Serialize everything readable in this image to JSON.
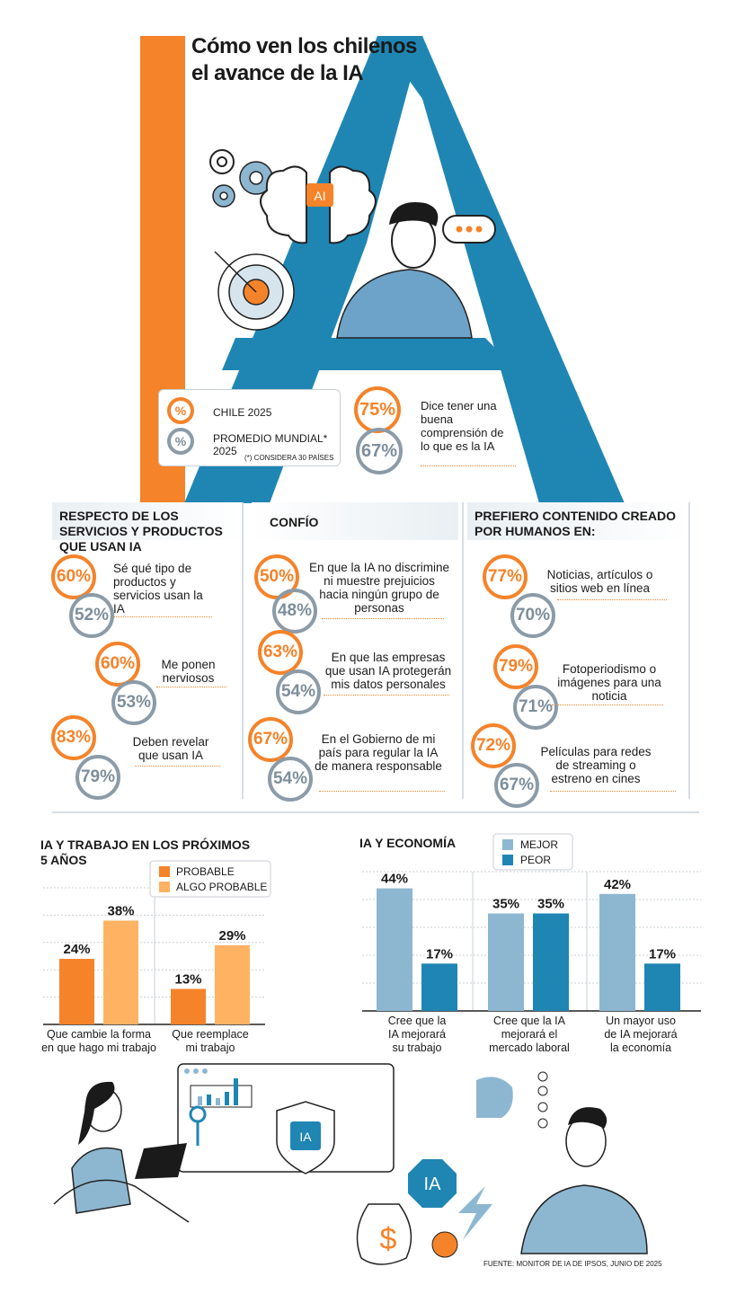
{
  "title": {
    "line1": "Cómo ven los chilenos",
    "line2": "el avance de la IA"
  },
  "colors": {
    "orange": "#f5832a",
    "gray": "#8b9ba7",
    "blue": "#1f86b4",
    "light_orange": "#ffb262",
    "light_blue": "#8db7d1"
  },
  "illustration": {
    "chip_label": "AI",
    "bottom_chip_label": "IA",
    "octagon_label": "IA",
    "money_symbol": "$"
  },
  "legend": {
    "ring_symbol": "%",
    "chile_label": "CHILE 2025",
    "mundial_label_line1": "PROMEDIO MUNDIAL*",
    "mundial_label_line2": "2025",
    "note": "(*) CONSIDERA 30 PAÍSES"
  },
  "headline_stat": {
    "chile": "75%",
    "mundial": "67%",
    "text": "Dice tener una buena comprensión de lo que es la IA"
  },
  "sections": [
    {
      "title": "RESPECTO DE LOS SERVICIOS Y PRODUCTOS QUE USAN IA",
      "items": [
        {
          "chile": "60%",
          "mundial": "52%",
          "text": "Sé qué tipo de productos y servicios usan la IA"
        },
        {
          "chile": "60%",
          "mundial": "53%",
          "text": "Me ponen nerviosos"
        },
        {
          "chile": "83%",
          "mundial": "79%",
          "text": "Deben revelar que usan IA"
        }
      ]
    },
    {
      "title": "CONFÍO",
      "items": [
        {
          "chile": "50%",
          "mundial": "48%",
          "text": "En que la IA no discrimine ni muestre prejuicios hacia ningún grupo de personas"
        },
        {
          "chile": "63%",
          "mundial": "54%",
          "text": "En que las empresas que usan IA protegerán mis datos personales"
        },
        {
          "chile": "67%",
          "mundial": "54%",
          "text": "En el Gobierno de mi país para regular la IA de manera responsable"
        }
      ]
    },
    {
      "title": "PREFIERO CONTENIDO CREADO POR HUMANOS EN:",
      "items": [
        {
          "chile": "77%",
          "mundial": "70%",
          "text": "Noticias, artículos o sitios web en línea"
        },
        {
          "chile": "79%",
          "mundial": "71%",
          "text": "Fotoperiodismo o imágenes para una noticia"
        },
        {
          "chile": "72%",
          "mundial": "67%",
          "text": "Películas para redes de streaming o estreno en cines"
        }
      ]
    }
  ],
  "chart_data": [
    {
      "type": "bar",
      "title": "IA Y TRABAJO EN LOS PRÓXIMOS 5 AÑOS",
      "categories": [
        "Que cambie la forma en que hago mi trabajo",
        "Que reemplace mi trabajo"
      ],
      "series": [
        {
          "name": "PROBABLE",
          "values": [
            24,
            13
          ],
          "color": "#f5832a"
        },
        {
          "name": "ALGO PROBABLE",
          "values": [
            38,
            29
          ],
          "color": "#ffb262"
        }
      ],
      "value_labels": [
        [
          "24%",
          "13%"
        ],
        [
          "38%",
          "29%"
        ]
      ],
      "ylim": [
        0,
        50
      ],
      "grid": true,
      "legend": "top-right"
    },
    {
      "type": "bar",
      "title": "IA Y ECONOMÍA",
      "categories": [
        "Cree que la IA mejorará su trabajo",
        "Cree que la IA mejorará el mercado laboral",
        "Un mayor uso de IA mejorará la economía"
      ],
      "series": [
        {
          "name": "MEJOR",
          "values": [
            44,
            35,
            42
          ],
          "color": "#8db7d1"
        },
        {
          "name": "PEOR",
          "values": [
            17,
            35,
            17
          ],
          "color": "#1f86b4"
        }
      ],
      "value_labels": [
        [
          "44%",
          "35%",
          "42%"
        ],
        [
          "17%",
          "35%",
          "17%"
        ]
      ],
      "ylim": [
        0,
        50
      ],
      "grid": true,
      "legend": "top-center"
    }
  ],
  "source": "FUENTE: MONITOR DE IA DE IPSOS, JUNIO DE 2025"
}
